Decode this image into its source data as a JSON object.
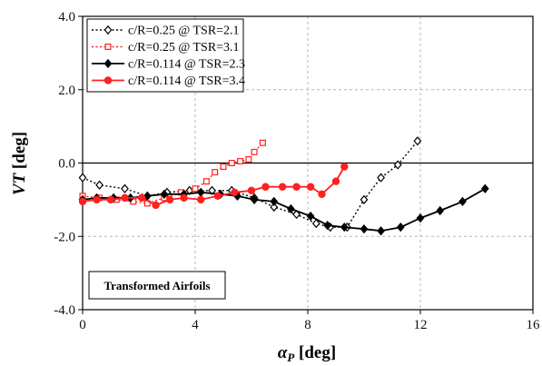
{
  "chart_data": {
    "type": "line",
    "title": "",
    "xlabel_main": "α",
    "xlabel_sub": "P",
    "xlabel_unit": " [deg]",
    "ylabel_main": "VT",
    "ylabel_unit": " [deg]",
    "xlim": [
      0,
      16
    ],
    "ylim": [
      -4,
      4
    ],
    "x_ticks": [
      0,
      4,
      8,
      12,
      16
    ],
    "x_tick_labels": [
      "0",
      "4",
      "8",
      "12",
      "16"
    ],
    "y_ticks": [
      4,
      2,
      0,
      -2,
      -4
    ],
    "y_tick_labels": [
      "4.0",
      "2.0",
      "0.0",
      "-2.0",
      "-4.0"
    ],
    "grid": true,
    "legend_position": "top-left",
    "annotation": "Transformed Airfoils",
    "series": [
      {
        "name": "c/R=0.25 @ TSR=2.1",
        "color": "#000000",
        "line": "dotted",
        "marker": "diamond-open",
        "x": [
          0.0,
          0.6,
          1.5,
          2.3,
          3.0,
          3.8,
          4.6,
          5.3,
          6.1,
          6.8,
          7.6,
          8.3,
          8.8,
          9.4,
          10.0,
          10.6,
          11.2,
          11.9
        ],
        "y": [
          -0.4,
          -0.6,
          -0.7,
          -0.9,
          -0.8,
          -0.75,
          -0.75,
          -0.75,
          -0.95,
          -1.2,
          -1.4,
          -1.65,
          -1.75,
          -1.75,
          -1.0,
          -0.4,
          -0.05,
          0.6
        ]
      },
      {
        "name": "c/R=0.25 @ TSR=3.1",
        "color": "#ff2020",
        "line": "dotted",
        "marker": "square-open",
        "x": [
          0.0,
          0.6,
          1.2,
          1.8,
          2.3,
          2.9,
          3.5,
          4.0,
          4.4,
          4.7,
          5.0,
          5.3,
          5.6,
          5.9,
          6.1,
          6.4
        ],
        "y": [
          -0.9,
          -0.95,
          -1.0,
          -1.05,
          -1.1,
          -0.95,
          -0.8,
          -0.7,
          -0.5,
          -0.25,
          -0.1,
          0.0,
          0.05,
          0.1,
          0.3,
          0.55
        ]
      },
      {
        "name": "c/R=0.114 @ TSR=2.3",
        "color": "#000000",
        "line": "solid",
        "marker": "diamond-filled",
        "x": [
          0.0,
          0.5,
          1.1,
          1.7,
          2.3,
          2.9,
          3.6,
          4.2,
          4.9,
          5.5,
          6.1,
          6.8,
          7.4,
          8.1,
          8.7,
          9.3,
          10.0,
          10.6,
          11.3,
          12.0,
          12.7,
          13.5,
          14.3
        ],
        "y": [
          -1.0,
          -0.95,
          -0.95,
          -0.95,
          -0.9,
          -0.85,
          -0.85,
          -0.8,
          -0.85,
          -0.9,
          -1.0,
          -1.05,
          -1.25,
          -1.45,
          -1.7,
          -1.75,
          -1.8,
          -1.85,
          -1.75,
          -1.5,
          -1.3,
          -1.05,
          -0.7
        ]
      },
      {
        "name": "c/R=0.114 @ TSR=3.4",
        "color": "#ff2020",
        "line": "solid",
        "marker": "circle-filled",
        "x": [
          0.0,
          0.5,
          1.0,
          1.5,
          2.1,
          2.6,
          3.1,
          3.6,
          4.2,
          4.8,
          5.4,
          6.0,
          6.5,
          7.1,
          7.6,
          8.1,
          8.5,
          9.0,
          9.3
        ],
        "y": [
          -1.05,
          -1.0,
          -1.0,
          -0.95,
          -0.95,
          -1.15,
          -1.0,
          -0.95,
          -1.0,
          -0.9,
          -0.8,
          -0.75,
          -0.65,
          -0.65,
          -0.65,
          -0.65,
          -0.85,
          -0.5,
          -0.1
        ]
      }
    ]
  }
}
